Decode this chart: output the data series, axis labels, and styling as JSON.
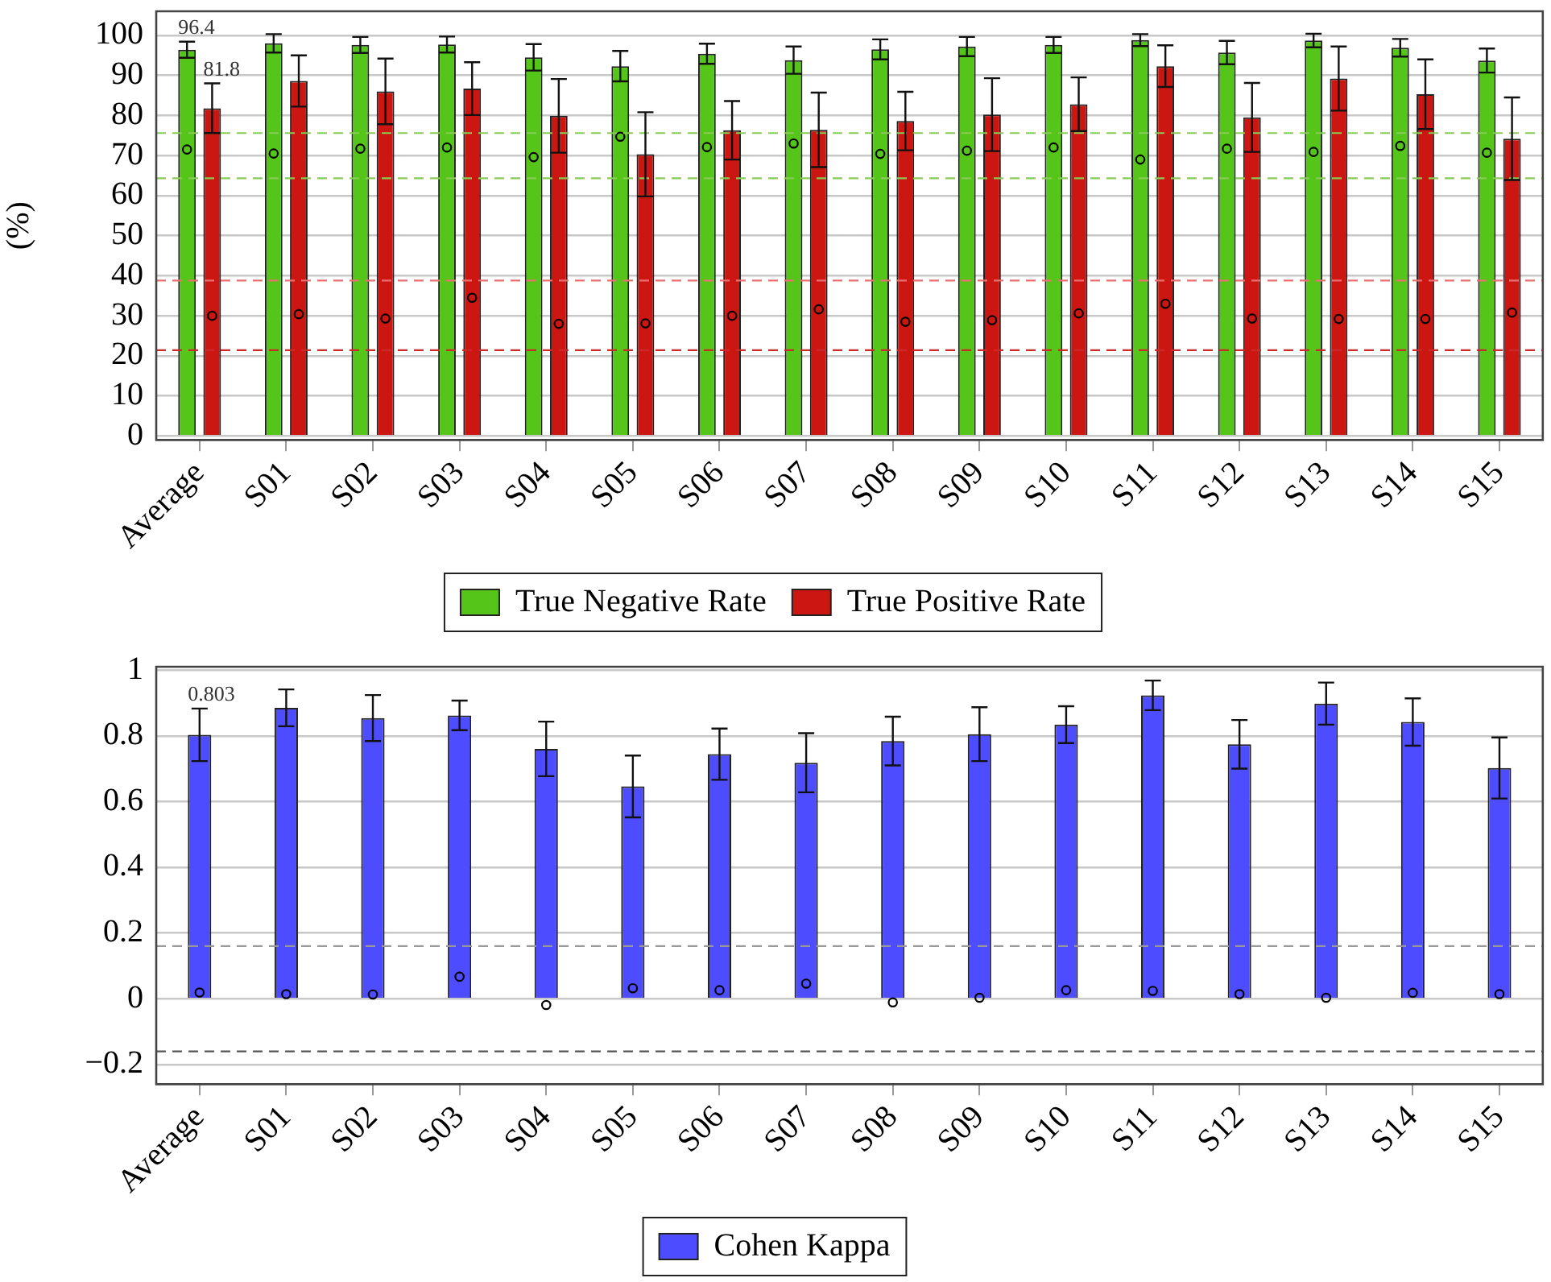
{
  "chart_data": [
    {
      "type": "bar",
      "ylabel": "(%)",
      "categories": [
        "Average",
        "S01",
        "S02",
        "S03",
        "S04",
        "S05",
        "S06",
        "S07",
        "S08",
        "S09",
        "S10",
        "S11",
        "S12",
        "S13",
        "S14",
        "S15"
      ],
      "series": [
        {
          "name": "True Negative Rate",
          "color": "#55c51a",
          "values": [
            96.4,
            98.0,
            97.6,
            97.7,
            94.5,
            92.3,
            95.4,
            93.8,
            96.5,
            97.2,
            97.6,
            98.8,
            95.7,
            98.7,
            96.9,
            93.7
          ],
          "errors": [
            2.0,
            2.3,
            2.0,
            2.0,
            3.3,
            3.8,
            2.5,
            3.4,
            2.5,
            2.4,
            2.0,
            1.5,
            2.9,
            1.7,
            2.2,
            3.0
          ],
          "value_labels": [
            "96.4",
            null,
            null,
            null,
            null,
            null,
            null,
            null,
            null,
            null,
            null,
            null,
            null,
            null,
            null,
            null
          ]
        },
        {
          "name": "True Positive Rate",
          "color": "#cc1612",
          "values": [
            81.8,
            88.6,
            86.0,
            86.7,
            79.9,
            70.3,
            76.3,
            76.4,
            78.6,
            80.2,
            82.8,
            92.3,
            79.5,
            89.2,
            85.3,
            74.2
          ],
          "errors": [
            6.2,
            6.4,
            8.2,
            6.6,
            9.2,
            10.5,
            7.3,
            9.3,
            7.3,
            9.1,
            6.7,
            5.2,
            8.6,
            8.0,
            8.7,
            10.3
          ],
          "value_labels": [
            "81.8",
            null,
            null,
            null,
            null,
            null,
            null,
            null,
            null,
            null,
            null,
            null,
            null,
            null,
            null,
            null
          ]
        },
        {
          "type": "scatter",
          "color": "#000000",
          "x": [
            "Average",
            "S01",
            "S02",
            "S03",
            "S04",
            "S05",
            "S06",
            "S07",
            "S08",
            "S09",
            "S10",
            "S11",
            "S12",
            "S13",
            "S14",
            "S15"
          ],
          "values": [
            71.5,
            70.5,
            71.7,
            72.0,
            69.6,
            74.7,
            72.1,
            73.0,
            70.4,
            71.2,
            72.0,
            69.0,
            71.7,
            70.9,
            72.4,
            70.7
          ]
        },
        {
          "type": "scatter",
          "color": "#000000",
          "x": [
            "Average",
            "S01",
            "S02",
            "S03",
            "S04",
            "S05",
            "S06",
            "S07",
            "S08",
            "S09",
            "S10",
            "S11",
            "S12",
            "S13",
            "S14",
            "S15"
          ],
          "values": [
            30.0,
            30.4,
            29.3,
            34.5,
            28.0,
            28.1,
            30.0,
            31.6,
            28.5,
            28.9,
            30.6,
            33.0,
            29.3,
            29.2,
            29.2,
            30.8
          ]
        }
      ],
      "ylim": [
        -1,
        106
      ],
      "yticks": [
        0,
        10,
        20,
        30,
        40,
        50,
        60,
        70,
        80,
        90,
        100
      ],
      "ref_lines": [
        {
          "axis": "y",
          "value": 75.6,
          "color": "#88cc55",
          "line_style": "dashed"
        },
        {
          "axis": "y",
          "value": 64.3,
          "color": "#88cc55",
          "line_style": "dashed"
        },
        {
          "axis": "y",
          "value": 38.8,
          "color": "#e87070",
          "line_style": "dashed"
        },
        {
          "axis": "y",
          "value": 21.4,
          "color": "#cc2a2a",
          "line_style": "dashed"
        }
      ],
      "grid": "y",
      "legend": "bottom",
      "marker": "circle"
    },
    {
      "type": "bar",
      "categories": [
        "Average",
        "S01",
        "S02",
        "S03",
        "S04",
        "S05",
        "S06",
        "S07",
        "S08",
        "S09",
        "S10",
        "S11",
        "S12",
        "S13",
        "S14",
        "S15"
      ],
      "series": [
        {
          "name": "Cohen Kappa",
          "color": "#4d4dff",
          "values": [
            0.803,
            0.885,
            0.854,
            0.862,
            0.76,
            0.646,
            0.744,
            0.718,
            0.784,
            0.805,
            0.834,
            0.923,
            0.774,
            0.898,
            0.842,
            0.702
          ],
          "errors": [
            0.08,
            0.056,
            0.07,
            0.045,
            0.083,
            0.094,
            0.078,
            0.09,
            0.074,
            0.082,
            0.056,
            0.045,
            0.074,
            0.064,
            0.072,
            0.093
          ],
          "value_labels": [
            "0.803",
            null,
            null,
            null,
            null,
            null,
            null,
            null,
            null,
            null,
            null,
            null,
            null,
            null,
            null,
            null
          ]
        },
        {
          "type": "scatter",
          "color": "#000000",
          "x": [
            "Average",
            "S01",
            "S02",
            "S03",
            "S04",
            "S05",
            "S06",
            "S07",
            "S08",
            "S09",
            "S10",
            "S11",
            "S12",
            "S13",
            "S14",
            "S15"
          ],
          "values": [
            0.019,
            0.014,
            0.013,
            0.067,
            -0.019,
            0.032,
            0.026,
            0.046,
            -0.011,
            0.003,
            0.026,
            0.024,
            0.014,
            0.003,
            0.018,
            0.014
          ]
        }
      ],
      "ylim": [
        -0.26,
        1.01
      ],
      "yticks": [
        {
          "value": -0.2,
          "label": "−0.2"
        },
        0,
        0.2,
        0.4,
        0.6,
        0.8,
        1
      ],
      "ref_lines": [
        {
          "axis": "y",
          "value": 0.16,
          "color": "#999999",
          "line_style": "dashed"
        },
        {
          "axis": "y",
          "value": -0.16,
          "color": "#555555",
          "line_style": "dashed"
        }
      ],
      "grid": "y",
      "legend": "bottom",
      "marker": "circle"
    }
  ]
}
